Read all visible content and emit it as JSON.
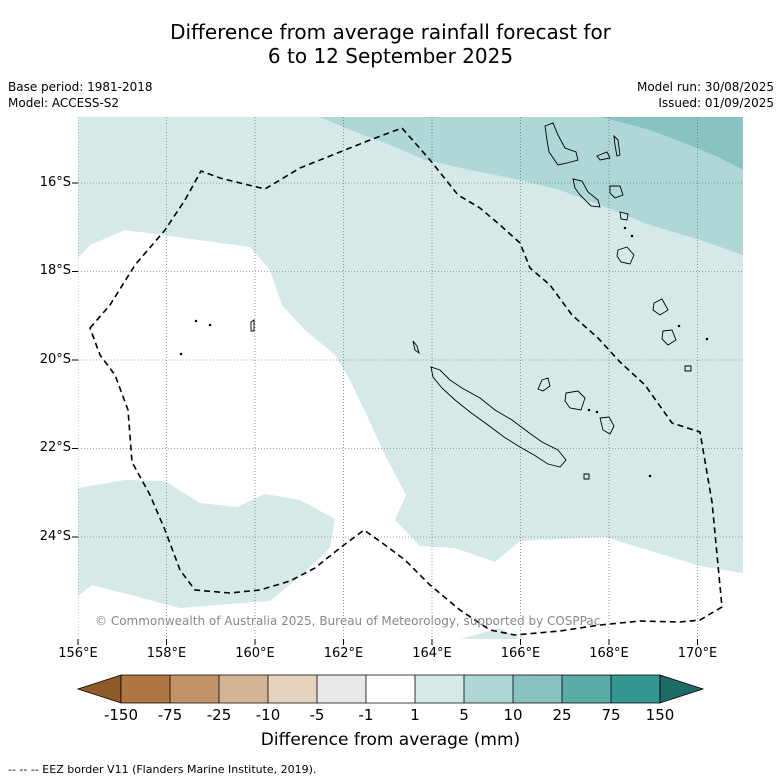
{
  "title": {
    "line1": "Difference from average rainfall forecast for",
    "line2": "6 to 12 September 2025"
  },
  "meta": {
    "base_period": "Base period: 1981-2018",
    "model": "Model: ACCESS-S2",
    "model_run": "Model run: 30/08/2025",
    "issued": "Issued: 01/09/2025"
  },
  "map": {
    "lon_labels": [
      "156°E",
      "158°E",
      "160°E",
      "162°E",
      "164°E",
      "166°E",
      "168°E",
      "170°E"
    ],
    "lat_labels": [
      "16°S",
      "18°S",
      "20°S",
      "22°S",
      "24°S"
    ],
    "copyright": "© Commonwealth of Australia 2025, Bureau of Meteorology, supported by COSPPac",
    "colors": {
      "c1_5": "#d5e9e8",
      "c5_10": "#afd7d6",
      "c10_25": "#88c3c1"
    }
  },
  "colorbar": {
    "title": "Difference from average (mm)",
    "labels": [
      "-150",
      "-75",
      "-25",
      "-10",
      "-5",
      "-1",
      "1",
      "5",
      "10",
      "25",
      "75",
      "150"
    ],
    "colors": [
      "#8f5a26",
      "#b07641",
      "#c39368",
      "#d5b396",
      "#e7d2bd",
      "#e8e8e6",
      "#ffffff",
      "#d5e9e8",
      "#afd7d6",
      "#88c3c1",
      "#5aaaa8",
      "#339791",
      "#1d6b66"
    ]
  },
  "legend_note": "--  --  -- EEZ border V11 (Flanders Marine Institute, 2019)."
}
